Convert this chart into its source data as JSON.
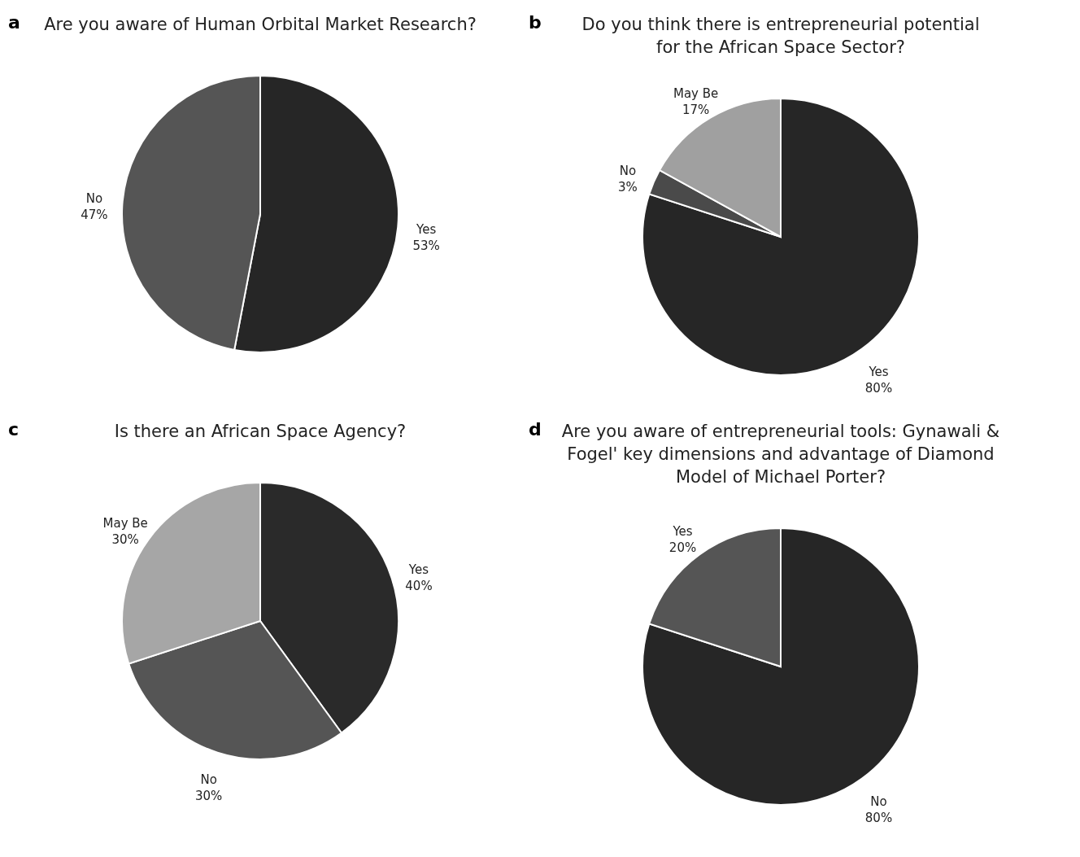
{
  "chart_data": [
    {
      "type": "pie",
      "title": "Are you aware of Human  Orbital Market Research?",
      "annotations": [
        "a"
      ],
      "categories": [
        "Yes",
        "No"
      ],
      "values": [
        53,
        47
      ],
      "value_labels": [
        "53%",
        "47%"
      ],
      "colors": [
        "#262626",
        "#555555"
      ]
    },
    {
      "type": "pie",
      "title": "Do you think there is entrepreneurial potential for the African Space Sector?",
      "annotations": [
        "b"
      ],
      "categories": [
        "Yes",
        "No",
        "May Be"
      ],
      "values": [
        80,
        3,
        17
      ],
      "value_labels": [
        "80%",
        "3%",
        "17%"
      ],
      "colors": [
        "#262626",
        "#4a4a4a",
        "#a0a0a0"
      ]
    },
    {
      "type": "pie",
      "title": "Is there an African Space Agency?",
      "annotations": [
        "c"
      ],
      "categories": [
        "Yes",
        "No",
        "May Be"
      ],
      "values": [
        40,
        30,
        30
      ],
      "value_labels": [
        "40%",
        "30%",
        "30%"
      ],
      "colors": [
        "#2a2a2a",
        "#555555",
        "#a6a6a6"
      ]
    },
    {
      "type": "pie",
      "title": "Are you aware of entrepreneurial tools: Gynawali & Fogel' key dimensions and advantage of Diamond Model of Michael Porter?",
      "annotations": [
        "d"
      ],
      "categories": [
        "No",
        "Yes"
      ],
      "values": [
        80,
        20
      ],
      "value_labels": [
        "80%",
        "20%"
      ],
      "colors": [
        "#262626",
        "#555555"
      ]
    }
  ]
}
